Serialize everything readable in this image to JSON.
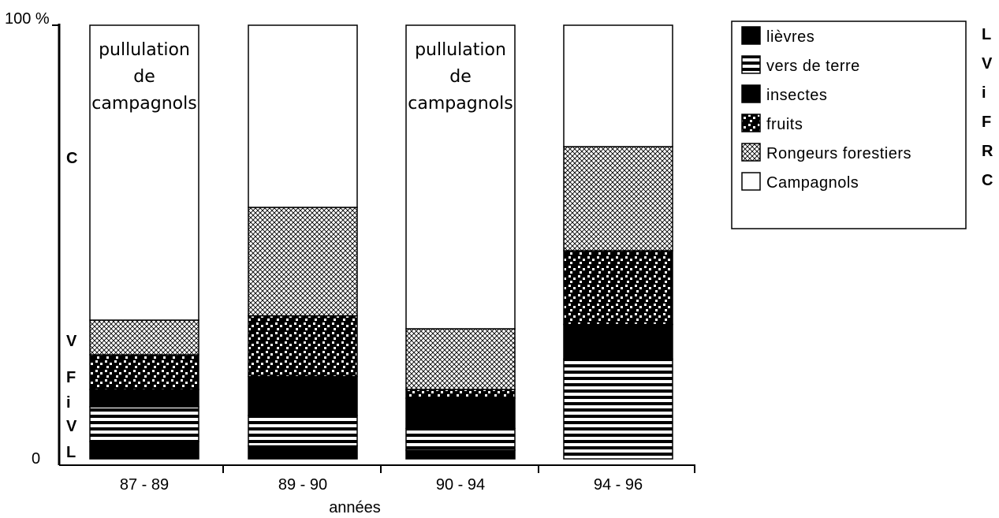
{
  "chart_data": {
    "type": "bar",
    "stacked": true,
    "xlabel": "années",
    "ylabel": "",
    "ylim": [
      0,
      100
    ],
    "y_ticks": [
      "0",
      "100 %"
    ],
    "categories": [
      "87 - 89",
      "89 - 90",
      "90 - 94",
      "94 - 96"
    ],
    "series": [
      {
        "name": "lièvres",
        "letter": "L",
        "pattern": "solid",
        "values": [
          4,
          3,
          2,
          0
        ]
      },
      {
        "name": "vers de terre",
        "letter": "V",
        "pattern": "hstripes",
        "values": [
          8,
          7,
          5,
          23
        ]
      },
      {
        "name": "insectes",
        "letter": "i",
        "pattern": "solid",
        "values": [
          4,
          9,
          7,
          8
        ]
      },
      {
        "name": "fruits",
        "letter": "F",
        "pattern": "dots",
        "values": [
          8,
          14,
          2,
          17
        ]
      },
      {
        "name": "Rongeurs forestiers",
        "letter": "R",
        "pattern": "crosshatch",
        "values": [
          8,
          25,
          14,
          24
        ]
      },
      {
        "name": "Campagnols",
        "letter": "C",
        "pattern": "white",
        "values": [
          68,
          42,
          70,
          28
        ]
      }
    ],
    "annotations": [
      {
        "category": "87 - 89",
        "lines": [
          "pullulation",
          "de",
          "campagnols"
        ]
      },
      {
        "category": "90 - 94",
        "lines": [
          "pullulation",
          "de",
          "campagnols"
        ]
      }
    ],
    "axis_letters": [
      "C",
      "V",
      "F",
      "i",
      "V",
      "L"
    ],
    "legend_position": "top-right",
    "legend_letters": [
      "L",
      "V",
      "i",
      "F",
      "R",
      "C"
    ],
    "grid": false
  }
}
